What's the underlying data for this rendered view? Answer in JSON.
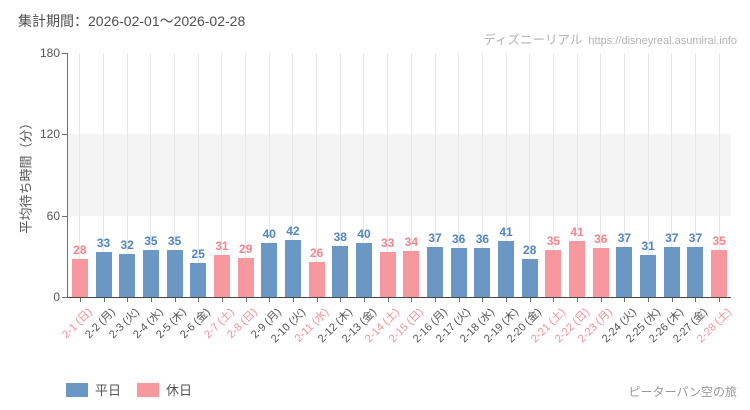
{
  "header": {
    "period_label": "集計期間：2026-02-01～2026-02-28",
    "watermark_brand": "ディズニーリアル",
    "watermark_url": "https://disneyreal.asumirai.info"
  },
  "footer": {
    "attraction": "ピーターパン空の旅"
  },
  "colors": {
    "weekday_bar": "#6b97c4",
    "holiday_bar": "#f7989f",
    "weekday_value_label": "#4f86c0",
    "holiday_value_label": "#f8838d",
    "weekday_tick_label": "#555555",
    "holiday_tick_label": "#f2909a",
    "axis": "#6f6f6f",
    "gridline": "#e7e7e7",
    "band": "#f4f4f4",
    "text": "#555555",
    "muted": "#b3b3b3"
  },
  "chart_data": {
    "type": "bar",
    "title": "集計期間：2026-02-01～2026-02-28",
    "xlabel": "",
    "ylabel": "平均待ち時間（分）",
    "ylim": [
      0,
      180
    ],
    "yticks": [
      0,
      60,
      120,
      180
    ],
    "shaded_band": [
      60,
      120
    ],
    "grid": "vertical-per-day",
    "legend_position": "bottom-left",
    "series_legend": [
      {
        "name": "平日",
        "type": "weekday",
        "color": "#6b97c4"
      },
      {
        "name": "休日",
        "type": "holiday",
        "color": "#f7989f"
      }
    ],
    "points": [
      {
        "label": "2-1 (日)",
        "value": 28,
        "type": "holiday"
      },
      {
        "label": "2-2 (月)",
        "value": 33,
        "type": "weekday"
      },
      {
        "label": "2-3 (火)",
        "value": 32,
        "type": "weekday"
      },
      {
        "label": "2-4 (水)",
        "value": 35,
        "type": "weekday"
      },
      {
        "label": "2-5 (木)",
        "value": 35,
        "type": "weekday"
      },
      {
        "label": "2-6 (金)",
        "value": 25,
        "type": "weekday"
      },
      {
        "label": "2-7 (土)",
        "value": 31,
        "type": "holiday"
      },
      {
        "label": "2-8 (日)",
        "value": 29,
        "type": "holiday"
      },
      {
        "label": "2-9 (月)",
        "value": 40,
        "type": "weekday"
      },
      {
        "label": "2-10 (火)",
        "value": 42,
        "type": "weekday"
      },
      {
        "label": "2-11 (水)",
        "value": 26,
        "type": "holiday"
      },
      {
        "label": "2-12 (木)",
        "value": 38,
        "type": "weekday"
      },
      {
        "label": "2-13 (金)",
        "value": 40,
        "type": "weekday"
      },
      {
        "label": "2-14 (土)",
        "value": 33,
        "type": "holiday"
      },
      {
        "label": "2-15 (日)",
        "value": 34,
        "type": "holiday"
      },
      {
        "label": "2-16 (月)",
        "value": 37,
        "type": "weekday"
      },
      {
        "label": "2-17 (火)",
        "value": 36,
        "type": "weekday"
      },
      {
        "label": "2-18 (水)",
        "value": 36,
        "type": "weekday"
      },
      {
        "label": "2-19 (木)",
        "value": 41,
        "type": "weekday"
      },
      {
        "label": "2-20 (金)",
        "value": 28,
        "type": "weekday"
      },
      {
        "label": "2-21 (土)",
        "value": 35,
        "type": "holiday"
      },
      {
        "label": "2-22 (日)",
        "value": 41,
        "type": "holiday"
      },
      {
        "label": "2-23 (月)",
        "value": 36,
        "type": "holiday"
      },
      {
        "label": "2-24 (火)",
        "value": 37,
        "type": "weekday"
      },
      {
        "label": "2-25 (水)",
        "value": 31,
        "type": "weekday"
      },
      {
        "label": "2-26 (木)",
        "value": 37,
        "type": "weekday"
      },
      {
        "label": "2-27 (金)",
        "value": 37,
        "type": "weekday"
      },
      {
        "label": "2-28 (土)",
        "value": 35,
        "type": "holiday"
      }
    ]
  }
}
